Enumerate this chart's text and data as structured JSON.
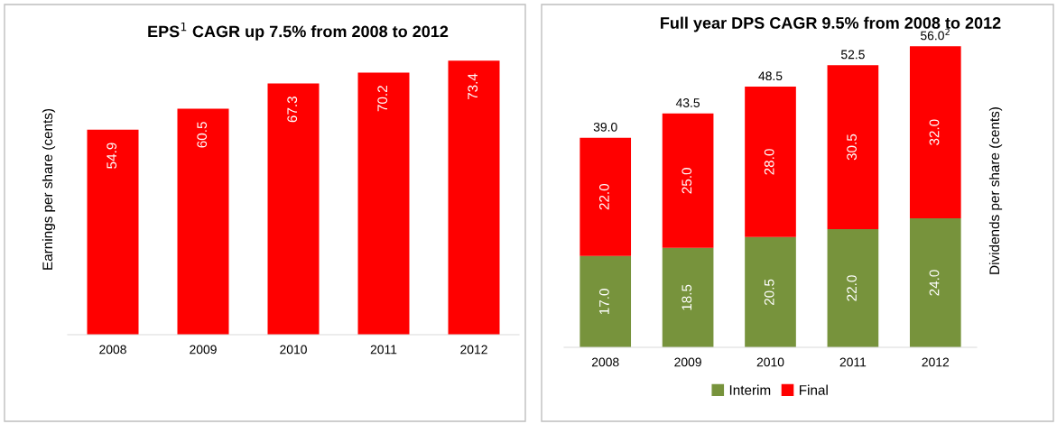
{
  "chart_data": [
    {
      "type": "bar",
      "title": "EPS$^{1}$ CAGR up 7.5% from 2008 to 2012",
      "ylabel": "Earnings per share (cents)",
      "categories": [
        "2008",
        "2009",
        "2010",
        "2011",
        "2012"
      ],
      "values": [
        54.9,
        60.5,
        67.3,
        70.2,
        73.4
      ],
      "color": "#ff0000",
      "data_labels": true,
      "tick_labels": "x",
      "grid": false,
      "legend": false
    },
    {
      "type": "bar",
      "title": "Full year DPS CAGR 9.5% from 2008 to 2012",
      "ylabel": "Dividends per share (cents)",
      "categories": [
        "2008",
        "2009",
        "2010",
        "2011",
        "2012"
      ],
      "stacked": true,
      "series": [
        {
          "name": "Interim",
          "color": "#77933c",
          "values": [
            17.0,
            18.5,
            20.5,
            22.0,
            24.0
          ],
          "value_labels": [
            "17.0",
            "18.5",
            "20.5",
            "22.0",
            "24.0"
          ]
        },
        {
          "name": "Final",
          "color": "#ff0000",
          "values": [
            22.0,
            25.0,
            28.0,
            30.5,
            32.0
          ],
          "value_labels": [
            "22.0",
            "25.0",
            "28.0",
            "30.5",
            "32.0"
          ]
        }
      ],
      "totals": [
        "39.0",
        "43.5",
        "48.5",
        "52.5",
        "56.0$^{2}$"
      ],
      "tick_labels": "x",
      "grid": false,
      "legend": "bottom"
    }
  ]
}
